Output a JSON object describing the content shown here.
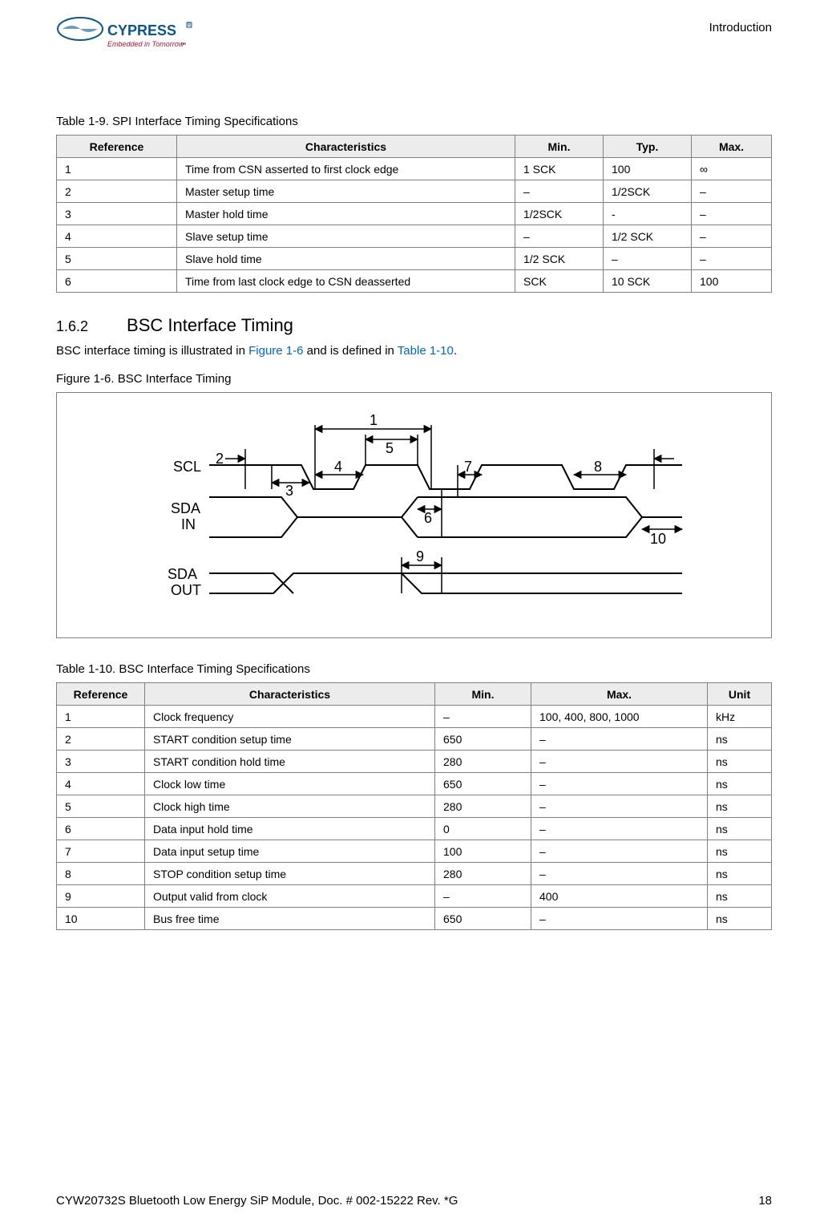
{
  "header": {
    "logo_top": "CYPRESS",
    "logo_sub": "Embedded in Tomorrow",
    "section": "Introduction"
  },
  "table1": {
    "caption": "Table 1-9.  SPI Interface Timing Specifications",
    "columns": [
      "Reference",
      "Characteristics",
      "Min.",
      "Typ.",
      "Max."
    ],
    "rows": [
      [
        "1",
        "Time from CSN asserted to first clock edge",
        "1 SCK",
        "100",
        "∞"
      ],
      [
        "2",
        "Master setup time",
        "–",
        "1/2SCK",
        "–"
      ],
      [
        "3",
        "Master hold time",
        "1/2SCK",
        "-",
        "–"
      ],
      [
        "4",
        "Slave setup time",
        "–",
        "1/2 SCK",
        "–"
      ],
      [
        "5",
        "Slave hold time",
        "1/2 SCK",
        "–",
        "–"
      ],
      [
        "6",
        "Time from last clock edge to CSN deasserted",
        "SCK",
        "10 SCK",
        "100"
      ]
    ]
  },
  "section162": {
    "num": "1.6.2",
    "title": "BSC Interface Timing",
    "p_a": "BSC interface timing is illustrated in ",
    "p_link1": "Figure 1-6",
    "p_b": " and is defined in ",
    "p_link2": "Table 1-10",
    "p_c": "."
  },
  "figure": {
    "caption": "Figure 1-6.  BSC Interface Timing",
    "labels": {
      "scl": "SCL",
      "sda_in_a": "SDA",
      "sda_in_b": "IN",
      "sda_out_a": "SDA",
      "sda_out_b": "OUT"
    },
    "nums": {
      "n1": "1",
      "n2": "2",
      "n3": "3",
      "n4": "4",
      "n5": "5",
      "n6": "6",
      "n7": "7",
      "n8": "8",
      "n9": "9",
      "n10": "10"
    },
    "stroke": "#000000",
    "stroke_width": 2,
    "font_size": 18
  },
  "table2": {
    "caption": "Table 1-10.  BSC Interface Timing Specifications",
    "columns": [
      "Reference",
      "Characteristics",
      "Min.",
      "Max.",
      "Unit"
    ],
    "rows": [
      [
        "1",
        "Clock frequency",
        "–",
        "100, 400, 800, 1000",
        "kHz"
      ],
      [
        "2",
        "START condition setup time",
        "650",
        "–",
        "ns"
      ],
      [
        "3",
        "START condition hold time",
        "280",
        "–",
        "ns"
      ],
      [
        "4",
        "Clock low time",
        "650",
        "–",
        "ns"
      ],
      [
        "5",
        "Clock high time",
        "280",
        "–",
        "ns"
      ],
      [
        "6",
        "Data input hold time",
        "0",
        "–",
        "ns"
      ],
      [
        "7",
        "Data input setup time",
        "100",
        "–",
        "ns"
      ],
      [
        "8",
        "STOP condition setup time",
        "280",
        "–",
        "ns"
      ],
      [
        "9",
        "Output valid from clock",
        "–",
        "400",
        "ns"
      ],
      [
        "10",
        "Bus free time",
        "650",
        "–",
        "ns"
      ]
    ]
  },
  "footer": {
    "doc": "CYW20732S Bluetooth Low Energy SiP Module, Doc. # 002-15222 Rev. *G",
    "page": "18"
  }
}
